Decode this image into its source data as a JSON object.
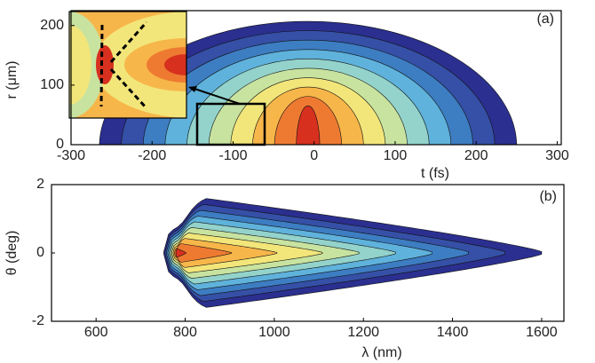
{
  "charts": [
    {
      "type": "contour",
      "panel_label": "(a)",
      "xlabel": "t (fs)",
      "ylabel": "r (μm)",
      "xlim": [
        -300,
        305
      ],
      "ylim": [
        0,
        225
      ],
      "xticks": [
        -300,
        -200,
        -100,
        0,
        100,
        200,
        300
      ],
      "yticks": [
        0,
        100,
        200
      ],
      "colors": [
        "#2b2f8f",
        "#3550a6",
        "#3d7dc2",
        "#5fb2db",
        "#93d3cb",
        "#c8e3a0",
        "#f2e67a",
        "#f7b64a",
        "#ee7a32",
        "#d7301f"
      ]
    },
    {
      "type": "contour",
      "panel_label": "(b)",
      "xlabel": "λ (nm)",
      "ylabel": "θ (deg)",
      "xlim": [
        500,
        1650
      ],
      "ylim": [
        -2,
        2
      ],
      "xticks": [
        600,
        800,
        1000,
        1200,
        1400,
        1600
      ],
      "yticks": [
        -2,
        0,
        2
      ],
      "colors": [
        "#2b2f8f",
        "#3550a6",
        "#3d7dc2",
        "#5fb2db",
        "#93d3cb",
        "#c8e3a0",
        "#f2e67a",
        "#f7b64a",
        "#ee7a32",
        "#d7301f"
      ]
    }
  ]
}
